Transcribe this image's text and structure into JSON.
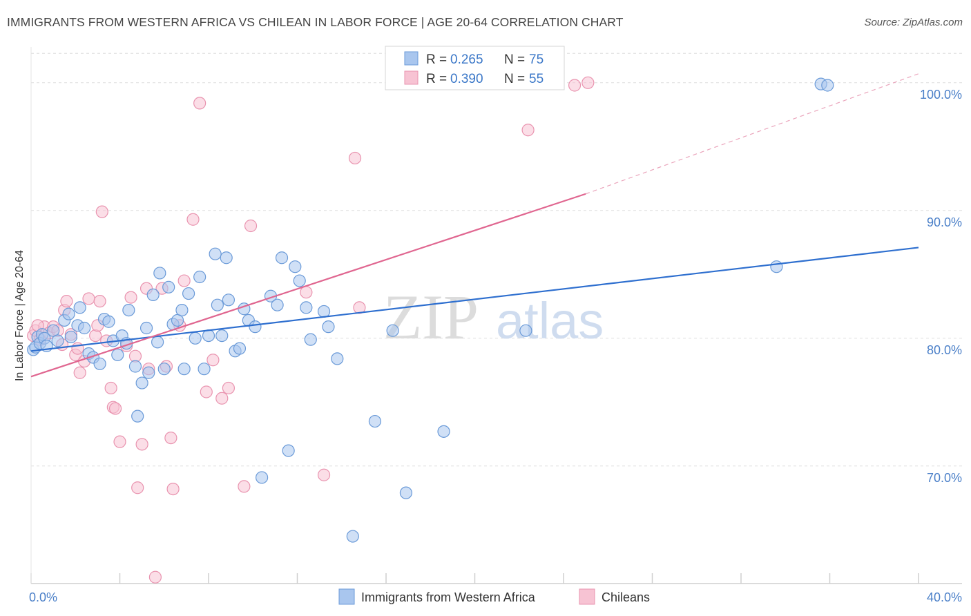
{
  "header": {
    "title": "IMMIGRANTS FROM WESTERN AFRICA VS CHILEAN IN LABOR FORCE | AGE 20-64 CORRELATION CHART",
    "source": "Source: ZipAtlas.com"
  },
  "watermark": {
    "zip": "ZIP",
    "atlas": "atlas"
  },
  "legend_box": {
    "rows": [
      {
        "r_label": "R = ",
        "r_value": "0.265",
        "n_label": "N = ",
        "n_value": "75",
        "color": "#a9c6ee"
      },
      {
        "r_label": "R = ",
        "r_value": "0.390",
        "n_label": "N = ",
        "n_value": "55",
        "color": "#f7b9cc"
      }
    ]
  },
  "colors": {
    "blue_fill": "#a9c6ee",
    "blue_stroke": "#6a9ad8",
    "blue_line": "#2e6fcf",
    "pink_fill": "#f7c3d3",
    "pink_stroke": "#e993af",
    "pink_line": "#e06690",
    "grid": "#dddddd",
    "tick_text": "#4a7fc8"
  },
  "chart_data": {
    "type": "scatter",
    "title": "IMMIGRANTS FROM WESTERN AFRICA VS CHILEAN IN LABOR FORCE | AGE 20-64 CORRELATION CHART",
    "xlabel": "",
    "ylabel": "In Labor Force | Age 20-64",
    "xlim": [
      0,
      40
    ],
    "ylim": [
      60.8,
      102.8
    ],
    "x_tick_labels": [
      "0.0%",
      "40.0%"
    ],
    "y_ticks": [
      70,
      80,
      90,
      100
    ],
    "y_tick_labels": [
      "70.0%",
      "80.0%",
      "90.0%",
      "100.0%"
    ],
    "grid": true,
    "legend_position": "top-center",
    "series": [
      {
        "name": "Immigrants from Western Africa",
        "r": 0.265,
        "n": 75,
        "trend": {
          "x": [
            0,
            40
          ],
          "y": [
            79.0,
            87.1
          ]
        },
        "points": [
          [
            0.1,
            79.1
          ],
          [
            0.2,
            79.3
          ],
          [
            0.3,
            80.1
          ],
          [
            0.4,
            79.6
          ],
          [
            0.5,
            80.3
          ],
          [
            0.6,
            80.0
          ],
          [
            0.7,
            79.4
          ],
          [
            1.0,
            80.6
          ],
          [
            1.2,
            79.8
          ],
          [
            1.5,
            81.4
          ],
          [
            1.7,
            81.9
          ],
          [
            1.8,
            80.1
          ],
          [
            2.1,
            81.0
          ],
          [
            2.2,
            82.4
          ],
          [
            2.4,
            80.8
          ],
          [
            2.6,
            78.8
          ],
          [
            2.8,
            78.5
          ],
          [
            3.1,
            78.0
          ],
          [
            3.3,
            81.5
          ],
          [
            3.5,
            81.3
          ],
          [
            3.7,
            79.8
          ],
          [
            3.9,
            78.7
          ],
          [
            4.1,
            80.2
          ],
          [
            4.3,
            79.6
          ],
          [
            4.4,
            82.2
          ],
          [
            4.7,
            77.8
          ],
          [
            4.8,
            73.9
          ],
          [
            5.0,
            76.5
          ],
          [
            5.2,
            80.8
          ],
          [
            5.3,
            77.3
          ],
          [
            5.5,
            83.4
          ],
          [
            5.7,
            79.7
          ],
          [
            5.8,
            85.1
          ],
          [
            6.0,
            77.6
          ],
          [
            6.2,
            84.0
          ],
          [
            6.4,
            81.1
          ],
          [
            6.6,
            81.4
          ],
          [
            6.8,
            82.2
          ],
          [
            6.9,
            77.6
          ],
          [
            7.1,
            83.5
          ],
          [
            7.4,
            80.0
          ],
          [
            7.6,
            84.8
          ],
          [
            7.8,
            77.6
          ],
          [
            8.0,
            80.2
          ],
          [
            8.3,
            86.6
          ],
          [
            8.4,
            82.6
          ],
          [
            8.6,
            80.2
          ],
          [
            8.8,
            86.3
          ],
          [
            8.9,
            83.0
          ],
          [
            9.2,
            79.0
          ],
          [
            9.4,
            79.2
          ],
          [
            9.6,
            82.3
          ],
          [
            9.8,
            81.4
          ],
          [
            10.1,
            80.9
          ],
          [
            10.4,
            69.1
          ],
          [
            10.8,
            83.3
          ],
          [
            11.1,
            82.6
          ],
          [
            11.3,
            86.3
          ],
          [
            11.6,
            71.2
          ],
          [
            11.9,
            85.6
          ],
          [
            12.1,
            84.5
          ],
          [
            12.4,
            82.4
          ],
          [
            12.6,
            79.9
          ],
          [
            13.2,
            82.1
          ],
          [
            13.4,
            80.9
          ],
          [
            13.8,
            78.4
          ],
          [
            14.5,
            64.5
          ],
          [
            15.5,
            73.5
          ],
          [
            16.3,
            80.6
          ],
          [
            16.9,
            67.9
          ],
          [
            18.6,
            72.7
          ],
          [
            22.3,
            80.6
          ],
          [
            33.6,
            85.6
          ],
          [
            35.6,
            99.9
          ],
          [
            35.9,
            99.8
          ]
        ]
      },
      {
        "name": "Chileans",
        "r": 0.39,
        "n": 55,
        "trend": {
          "x": [
            0,
            25
          ],
          "y": [
            77.0,
            91.3
          ]
        },
        "trend_dashed": {
          "x": [
            25,
            40
          ],
          "y": [
            91.3,
            100.7
          ]
        },
        "points": [
          [
            0.1,
            80.2
          ],
          [
            0.2,
            80.6
          ],
          [
            0.4,
            79.9
          ],
          [
            0.6,
            80.9
          ],
          [
            0.8,
            80.4
          ],
          [
            1.0,
            80.9
          ],
          [
            1.2,
            80.6
          ],
          [
            1.4,
            79.5
          ],
          [
            1.5,
            82.2
          ],
          [
            1.6,
            82.9
          ],
          [
            1.8,
            80.3
          ],
          [
            2.0,
            78.7
          ],
          [
            2.1,
            79.2
          ],
          [
            2.2,
            77.3
          ],
          [
            2.4,
            78.2
          ],
          [
            2.6,
            83.1
          ],
          [
            2.9,
            80.2
          ],
          [
            3.0,
            81.0
          ],
          [
            3.1,
            82.9
          ],
          [
            3.2,
            89.9
          ],
          [
            3.4,
            79.8
          ],
          [
            3.6,
            76.1
          ],
          [
            3.7,
            74.6
          ],
          [
            3.8,
            74.5
          ],
          [
            4.0,
            71.9
          ],
          [
            4.3,
            79.4
          ],
          [
            4.5,
            83.2
          ],
          [
            4.7,
            78.6
          ],
          [
            4.8,
            68.3
          ],
          [
            5.0,
            71.7
          ],
          [
            5.2,
            83.9
          ],
          [
            5.3,
            77.6
          ],
          [
            5.6,
            61.3
          ],
          [
            5.9,
            83.9
          ],
          [
            6.1,
            77.8
          ],
          [
            6.3,
            72.2
          ],
          [
            6.4,
            68.2
          ],
          [
            6.7,
            81.0
          ],
          [
            6.9,
            84.5
          ],
          [
            7.3,
            89.3
          ],
          [
            7.6,
            98.4
          ],
          [
            7.9,
            75.8
          ],
          [
            8.2,
            78.3
          ],
          [
            8.6,
            75.3
          ],
          [
            8.9,
            76.1
          ],
          [
            9.6,
            68.4
          ],
          [
            9.9,
            88.8
          ],
          [
            12.4,
            83.6
          ],
          [
            13.2,
            69.3
          ],
          [
            14.6,
            94.1
          ],
          [
            14.8,
            82.4
          ],
          [
            22.4,
            96.3
          ],
          [
            24.5,
            99.8
          ],
          [
            25.1,
            100.0
          ],
          [
            0.3,
            81.0
          ]
        ]
      }
    ]
  },
  "bottom_legend": {
    "items": [
      {
        "label": "Immigrants from Western Africa"
      },
      {
        "label": "Chileans"
      }
    ]
  }
}
